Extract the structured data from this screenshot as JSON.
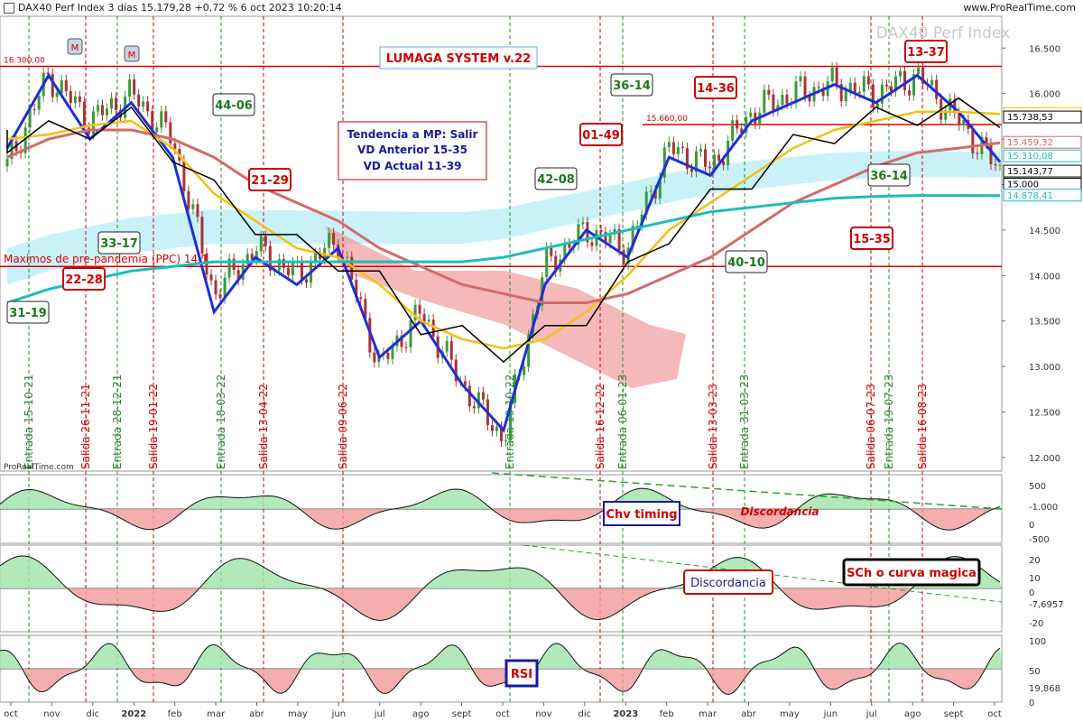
{
  "header": {
    "instrument": "DAX40 Perf Index 3 días 15.179,28 +0,72 % 6 oct 2023 10:20:14",
    "site": "www.ProRealTime.com"
  },
  "colors": {
    "up_candle": "#3a9a3a",
    "down_candle": "#a33",
    "blue_line": "#1f2fd6",
    "yellow_line": "#f2c20f",
    "red_ma": "#d46a6a",
    "cyan_ma": "#1cbdbd",
    "cloud_cyan": "#9be8f2",
    "cloud_red": "#f08a8a",
    "hline": "#e00000",
    "entry_line": "#2a8a2a",
    "exit_line": "#d00000",
    "panel_green": "#9fe3a9",
    "panel_red": "#f29a9a"
  },
  "labels": {
    "watermark": "DAX40 Perf Index",
    "system": "LUMAGA SYSTEM v.22",
    "trend_line1": "Tendencia a MP: Salir",
    "trend_line2": "VD Anterior 15-35",
    "trend_line3": "VD Actual 11-39",
    "pre_pandemic": "Maximos de pre-pandemia (PPC) 14.1..",
    "level_16300": "16.300,00",
    "level_15660": "15.660,00",
    "m_marker": "M",
    "prorealtime": "ProRealTime.com",
    "chv": "Chv timing",
    "discordancia1": "Discordancia",
    "discordancia2": "Discordancia",
    "sch": "SCh o curva magica",
    "rsi": "RSI"
  },
  "score_boxes": [
    {
      "text": "44-06",
      "color": "green"
    },
    {
      "text": "21-29",
      "color": "red"
    },
    {
      "text": "33-17",
      "color": "green"
    },
    {
      "text": "22-28",
      "color": "red"
    },
    {
      "text": "31-19",
      "color": "green"
    },
    {
      "text": "36-14",
      "color": "green"
    },
    {
      "text": "14-36",
      "color": "red"
    },
    {
      "text": "01-49",
      "color": "red"
    },
    {
      "text": "42-08",
      "color": "green"
    },
    {
      "text": "36-14",
      "color": "green"
    },
    {
      "text": "15-35",
      "color": "red"
    },
    {
      "text": "40-10",
      "color": "green"
    },
    {
      "text": "13-37",
      "color": "red"
    }
  ],
  "chart_data": {
    "type": "line",
    "title": "DAX40 Perf Index",
    "y_ticks": [
      "16.500",
      "16.000",
      "15.500",
      "15.000",
      "14.500",
      "14.000",
      "13.500",
      "13.000",
      "12.500",
      "12.000"
    ],
    "ylim": [
      11850,
      16850
    ],
    "x_ticks": [
      "oct",
      "nov",
      "dic",
      "2022",
      "feb",
      "mar",
      "abr",
      "may",
      "jun",
      "jul",
      "ago",
      "sept",
      "oct",
      "nov",
      "dic",
      "2023",
      "feb",
      "mar",
      "abr",
      "may",
      "jun",
      "jul",
      "ago",
      "sept",
      "oct"
    ],
    "price_tags": [
      {
        "text": "15.776,01",
        "value": 15776,
        "color": "#f2c20f"
      },
      {
        "text": "15.738,53",
        "value": 15738,
        "color": "#000000"
      },
      {
        "text": "15.459,32",
        "value": 15459,
        "color": "#d46a6a"
      },
      {
        "text": "15.310,08",
        "value": 15310,
        "color": "#1cbdbd"
      },
      {
        "text": "15.143,77",
        "value": 15143,
        "color": "#000000"
      },
      {
        "text": "15.000",
        "value": 15000,
        "color": "#000000"
      },
      {
        "text": "14.878,41",
        "value": 14878,
        "color": "#1cbdbd"
      }
    ],
    "signals": [
      {
        "label": "Entrada 15-10-21",
        "type": "entry"
      },
      {
        "label": "Salida 26-11-21",
        "type": "exit"
      },
      {
        "label": "Entrada 28-12-21",
        "type": "entry"
      },
      {
        "label": "Salida 19-01-22",
        "type": "exit"
      },
      {
        "label": "Entrada 18-03-22",
        "type": "entry"
      },
      {
        "label": "Salida 13-04-22",
        "type": "exit"
      },
      {
        "label": "Salida 09-06-22",
        "type": "exit"
      },
      {
        "label": "Entrada 10-10-22",
        "type": "entry"
      },
      {
        "label": "Salida 16-12-22",
        "type": "exit"
      },
      {
        "label": "Entrada 06-01-23",
        "type": "entry"
      },
      {
        "label": "Salida 13-03-23",
        "type": "exit"
      },
      {
        "label": "Entrada 31-03-23",
        "type": "entry"
      },
      {
        "label": "Salida 06-07-23",
        "type": "exit"
      },
      {
        "label": "Entrada 19-07-23",
        "type": "entry"
      },
      {
        "label": "Salida 16-08-23",
        "type": "exit"
      }
    ],
    "series": [
      {
        "name": "price_anchor",
        "x": [
          "oct-21",
          "nov-21",
          "dic-21",
          "ene-22",
          "feb-22",
          "mar-22",
          "abr-22",
          "may-22",
          "jun-22",
          "jul-22",
          "ago-22",
          "sept-22",
          "oct-22",
          "nov-22",
          "dic-22",
          "ene-23",
          "feb-23",
          "mar-23",
          "abr-23",
          "may-23",
          "jun-23",
          "jul-23",
          "ago-23",
          "sept-23",
          "oct-23"
        ],
        "values": [
          15200,
          16200,
          15700,
          16000,
          15500,
          13800,
          14300,
          14000,
          14400,
          13000,
          13600,
          12800,
          12200,
          14100,
          14500,
          14300,
          15400,
          15200,
          15800,
          16000,
          16100,
          16000,
          16200,
          15700,
          15150
        ]
      },
      {
        "name": "blue",
        "values": [
          15400,
          16200,
          15500,
          15900,
          15300,
          13600,
          14200,
          13900,
          14300,
          13100,
          13500,
          12800,
          12300,
          13900,
          14500,
          14200,
          15300,
          15100,
          15700,
          15900,
          16100,
          15900,
          16200,
          15800,
          15250
        ]
      },
      {
        "name": "yellow",
        "values": [
          15500,
          15550,
          15650,
          15700,
          15400,
          14900,
          14600,
          14300,
          14200,
          13900,
          13500,
          13300,
          13200,
          13300,
          13600,
          14000,
          14500,
          14800,
          15100,
          15400,
          15600,
          15700,
          15800,
          15800,
          15776
        ]
      },
      {
        "name": "red_ma",
        "values": [
          15300,
          15500,
          15600,
          15600,
          15500,
          15300,
          15000,
          14800,
          14600,
          14300,
          14100,
          13900,
          13800,
          13700,
          13700,
          13800,
          14000,
          14200,
          14500,
          14800,
          15000,
          15200,
          15350,
          15400,
          15459
        ]
      },
      {
        "name": "cyan_ma",
        "values": [
          13700,
          13850,
          13950,
          14050,
          14100,
          14150,
          14150,
          14150,
          14150,
          14150,
          14150,
          14150,
          14200,
          14300,
          14400,
          14500,
          14600,
          14700,
          14750,
          14800,
          14850,
          14870,
          14880,
          14880,
          14878
        ]
      }
    ],
    "oscillators": [
      {
        "name": "Chv timing",
        "ticks": [
          "500",
          "0",
          "-500",
          "-1.000"
        ]
      },
      {
        "name": "SCh o curva magica",
        "ticks": [
          "20",
          "10",
          "0",
          "-7,6957",
          "-20"
        ]
      },
      {
        "name": "RSI",
        "ticks": [
          "100",
          "50",
          "19,868",
          "0"
        ]
      }
    ]
  }
}
